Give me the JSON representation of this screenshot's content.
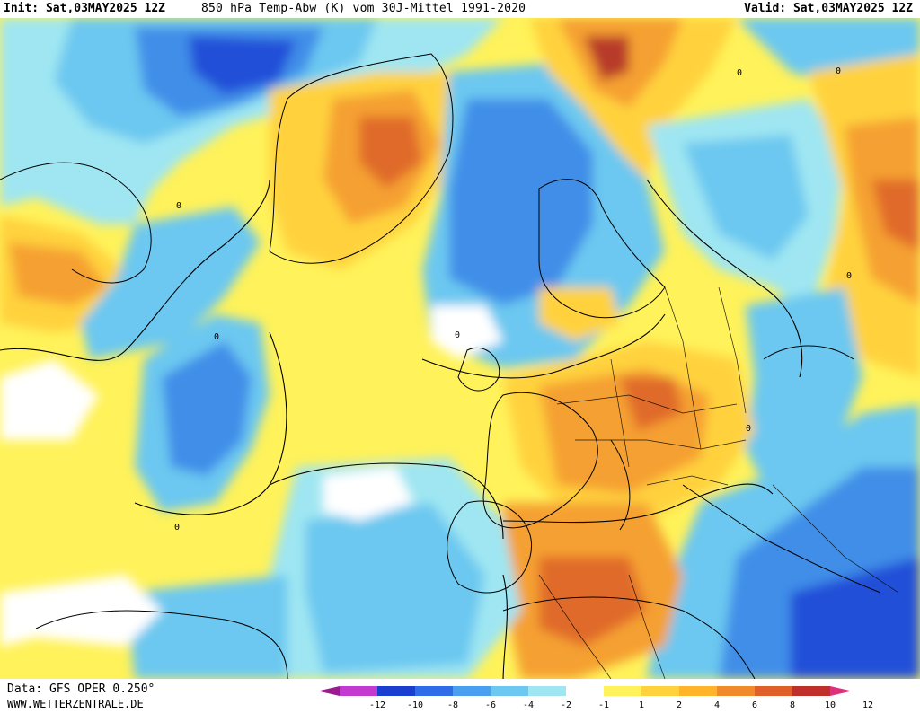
{
  "header": {
    "init": "Init: Sat,03MAY2025 12Z",
    "title": "850 hPa Temp-Abw (K) vom 30J-Mittel 1991-2020",
    "valid": "Valid: Sat,03MAY2025 12Z"
  },
  "footer": {
    "data_source": "Data: GFS OPER 0.250°",
    "website": "WWW.WETTERZENTRALE.DE"
  },
  "legend": {
    "labels": [
      "-12",
      "-10",
      "-8",
      "-6",
      "-4",
      "-2",
      "-1",
      "1",
      "2",
      "4",
      "6",
      "8",
      "10",
      "12"
    ],
    "colors": [
      "#9b1b8e",
      "#c33ad0",
      "#1a3fd0",
      "#2f6de8",
      "#4aa0f0",
      "#6cc8f0",
      "#9fe6f2",
      "#ffffff",
      "#fff25a",
      "#ffd23c",
      "#ffb42a",
      "#f08a2a",
      "#e0602a",
      "#c0302a",
      "#e0307a"
    ]
  },
  "map": {
    "colors": {
      "ocean_white": "#ffffff",
      "warm_yellow": "#fff25a",
      "warm_light": "#ffd23c",
      "warm_orange": "#f5a030",
      "warm_dark": "#e06a2a",
      "warm_red": "#b83a2a",
      "cold_light": "#9fe6f2",
      "cold_mid": "#6cc8f0",
      "cold_blue": "#3f8ee8",
      "cold_dark": "#2350d8"
    },
    "contour_label": "0"
  }
}
